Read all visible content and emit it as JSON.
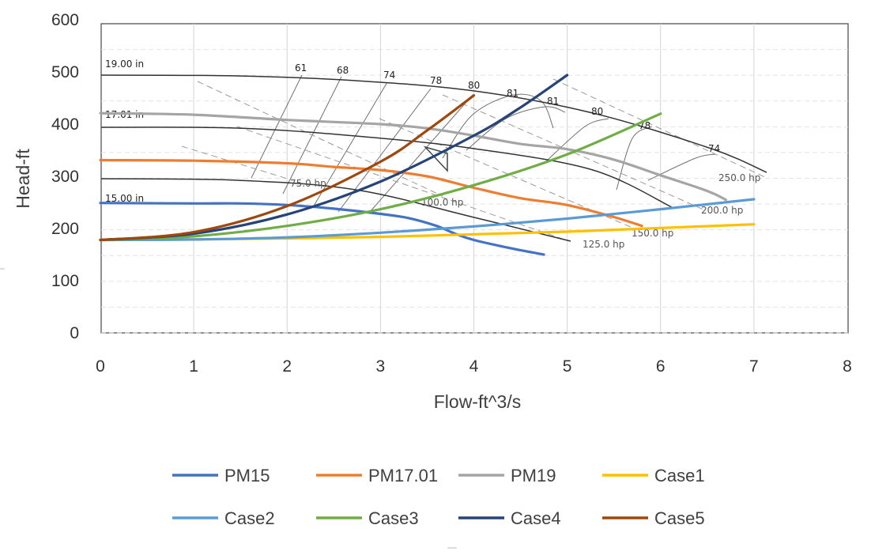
{
  "chart_data": {
    "type": "line",
    "title": "",
    "xlabel": "Flow-ft^3/s",
    "ylabel": "Head-ft",
    "xlim": [
      0,
      8
    ],
    "ylim": [
      0,
      600
    ],
    "xticks": [
      0,
      1,
      2,
      3,
      4,
      5,
      6,
      7,
      8
    ],
    "yticks": [
      0,
      100,
      200,
      300,
      400,
      500,
      600
    ],
    "grid": true,
    "legend_position": "bottom",
    "series": [
      {
        "name": "PM15",
        "color": "#4472C4",
        "x": [
          0,
          1,
          1.5,
          2,
          2.5,
          3,
          3.3,
          3.6,
          3.8,
          4,
          4.4,
          4.75
        ],
        "y": [
          249,
          248,
          248,
          245,
          238,
          228,
          220,
          205,
          190,
          178,
          162,
          150
        ]
      },
      {
        "name": "PM17.01",
        "color": "#ED7D31",
        "x": [
          0,
          1,
          2,
          2.5,
          3,
          3.5,
          4,
          4.5,
          5,
          5.5,
          5.8
        ],
        "y": [
          331,
          330,
          325,
          318,
          312,
          300,
          278,
          258,
          245,
          222,
          205
        ]
      },
      {
        "name": "PM19",
        "color": "#A5A5A5",
        "x": [
          0,
          1,
          2,
          3,
          3.5,
          4,
          4.5,
          5,
          5.5,
          6,
          6.5,
          6.7
        ],
        "y": [
          421,
          418,
          408,
          400,
          392,
          378,
          362,
          352,
          332,
          302,
          272,
          255
        ]
      },
      {
        "name": "Case1",
        "color": "#FFC000",
        "x": [
          0,
          1,
          2,
          3,
          4,
          5,
          6,
          7
        ],
        "y": [
          178,
          179,
          181,
          184,
          189,
          194,
          201,
          208
        ]
      },
      {
        "name": "Case2",
        "color": "#5B9BD5",
        "x": [
          0,
          1,
          2,
          3,
          4,
          5,
          6,
          7
        ],
        "y": [
          178,
          179,
          183,
          192,
          204,
          219,
          237,
          256
        ]
      },
      {
        "name": "Case3",
        "color": "#70AD47",
        "x": [
          0,
          1,
          2,
          3,
          4,
          5,
          6
        ],
        "y": [
          178,
          185,
          205,
          237,
          283,
          342,
          420
        ]
      },
      {
        "name": "Case4",
        "color": "#264478",
        "x": [
          0,
          1,
          2,
          3,
          4,
          4.5,
          5
        ],
        "y": [
          178,
          190,
          227,
          290,
          378,
          432,
          494
        ]
      },
      {
        "name": "Case5",
        "color": "#9E480E",
        "x": [
          0,
          1,
          2,
          3,
          3.5,
          4
        ],
        "y": [
          178,
          193,
          243,
          328,
          388,
          455
        ]
      }
    ],
    "legend_rows": [
      [
        "PM15",
        "PM17.01",
        "PM19",
        "Case1"
      ],
      [
        "Case2",
        "Case3",
        "Case4",
        "Case5"
      ]
    ],
    "background_image_labels": {
      "impeller_19": "19.00 in",
      "impeller_17": "17.01 in",
      "impeller_15": "15.00 in",
      "eff_61": "61",
      "eff_68": "68",
      "eff_74a": "74",
      "eff_78": "78",
      "eff_80a": "80",
      "eff_81a": "81",
      "eff_81b": "81",
      "eff_80b": "80",
      "eff_78b": "78",
      "eff_74b": "74",
      "hp_75": "75.0 hp",
      "hp_100": "100.0 hp",
      "hp_125": "125.0 hp",
      "hp_150": "150.0 hp",
      "hp_200": "200.0 hp",
      "hp_250": "250.0 hp"
    }
  }
}
